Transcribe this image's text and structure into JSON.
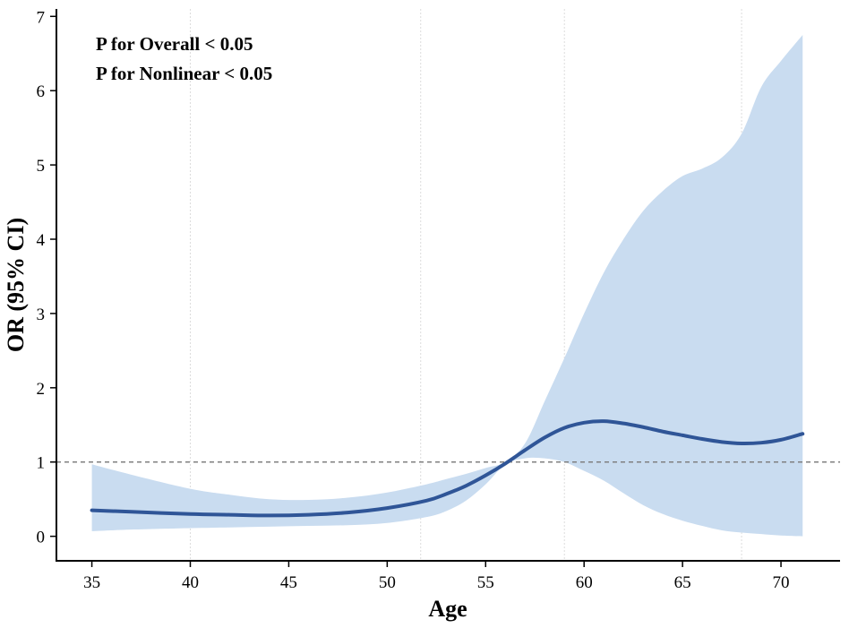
{
  "chart_data": {
    "type": "line",
    "xlabel": "Age",
    "ylabel": "OR (95% CI)",
    "xlim": [
      33.2,
      73.0
    ],
    "ylim": [
      -0.33,
      7.1
    ],
    "x_ticks": [
      35,
      40,
      45,
      50,
      55,
      60,
      65,
      70
    ],
    "y_ticks": [
      0,
      1,
      2,
      3,
      4,
      5,
      6,
      7
    ],
    "vertical_reference_lines": [
      40,
      51.7,
      59,
      68
    ],
    "reference_line": {
      "y": 1,
      "style": "dashed",
      "color": "#808080"
    },
    "annotations": [
      "P for Overall < 0.05",
      "P for Nonlinear < 0.05"
    ],
    "series": [
      {
        "color": "#2f5597",
        "x": [
          35,
          37,
          40,
          42,
          44,
          46,
          48,
          50,
          52,
          53,
          54,
          55,
          56,
          57,
          58,
          59,
          60,
          61,
          62,
          63,
          64,
          65,
          66,
          67,
          68,
          69,
          70,
          71.1
        ],
        "y": [
          0.35,
          0.33,
          0.3,
          0.29,
          0.28,
          0.29,
          0.32,
          0.38,
          0.48,
          0.57,
          0.68,
          0.82,
          0.98,
          1.16,
          1.33,
          1.46,
          1.53,
          1.55,
          1.52,
          1.47,
          1.41,
          1.36,
          1.31,
          1.27,
          1.25,
          1.26,
          1.3,
          1.38
        ],
        "lower": [
          0.07,
          0.09,
          0.11,
          0.12,
          0.13,
          0.14,
          0.15,
          0.18,
          0.26,
          0.34,
          0.48,
          0.7,
          0.97,
          1.05,
          1.05,
          1.0,
          0.88,
          0.75,
          0.58,
          0.42,
          0.3,
          0.21,
          0.14,
          0.08,
          0.05,
          0.03,
          0.01,
          0.0
        ],
        "upper": [
          0.97,
          0.83,
          0.64,
          0.56,
          0.5,
          0.49,
          0.52,
          0.59,
          0.7,
          0.77,
          0.84,
          0.92,
          1.0,
          1.25,
          1.82,
          2.4,
          3.0,
          3.55,
          4.0,
          4.38,
          4.65,
          4.85,
          4.95,
          5.1,
          5.42,
          6.05,
          6.4,
          6.75
        ]
      }
    ]
  }
}
